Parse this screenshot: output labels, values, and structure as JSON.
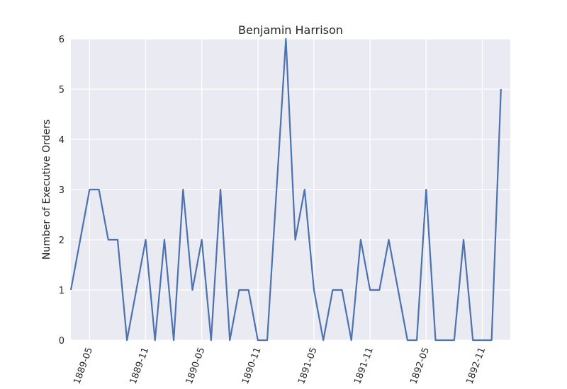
{
  "chart_data": {
    "type": "line",
    "title": "Benjamin Harrison",
    "xlabel": "",
    "ylabel": "Number of Executive Orders",
    "ylim": [
      0,
      6
    ],
    "yticks": [
      0,
      1,
      2,
      3,
      4,
      5,
      6
    ],
    "xlim": [
      "1889-03",
      "1893-02"
    ],
    "xticks": [
      "1889-05",
      "1889-11",
      "1890-05",
      "1890-11",
      "1891-05",
      "1891-11",
      "1892-05",
      "1892-11"
    ],
    "grid": true,
    "colors": {
      "plot_background": "#eaeaf2",
      "grid": "#ffffff",
      "line": "#4c72b0"
    },
    "series": [
      {
        "x": [
          "1889-03",
          "1889-04",
          "1889-05",
          "1889-06",
          "1889-07",
          "1889-08",
          "1889-09",
          "1889-10",
          "1889-11",
          "1889-12",
          "1890-01",
          "1890-02",
          "1890-03",
          "1890-04",
          "1890-05",
          "1890-06",
          "1890-07",
          "1890-08",
          "1890-09",
          "1890-10",
          "1890-11",
          "1890-12",
          "1891-01",
          "1891-02",
          "1891-03",
          "1891-04",
          "1891-05",
          "1891-06",
          "1891-07",
          "1891-08",
          "1891-09",
          "1891-10",
          "1891-11",
          "1891-12",
          "1892-01",
          "1892-02",
          "1892-03",
          "1892-04",
          "1892-05",
          "1892-06",
          "1892-07",
          "1892-08",
          "1892-09",
          "1892-10",
          "1892-11",
          "1892-12",
          "1893-01",
          "1893-02"
        ],
        "values": [
          1,
          2,
          3,
          3,
          2,
          2,
          0,
          1,
          2,
          0,
          2,
          0,
          3,
          1,
          2,
          0,
          3,
          0,
          1,
          1,
          0,
          0,
          3,
          6,
          2,
          3,
          1,
          0,
          1,
          1,
          0,
          2,
          1,
          1,
          2,
          1,
          0,
          0,
          3,
          0,
          0,
          0,
          2,
          0,
          0,
          0,
          5,
          null
        ]
      }
    ]
  }
}
